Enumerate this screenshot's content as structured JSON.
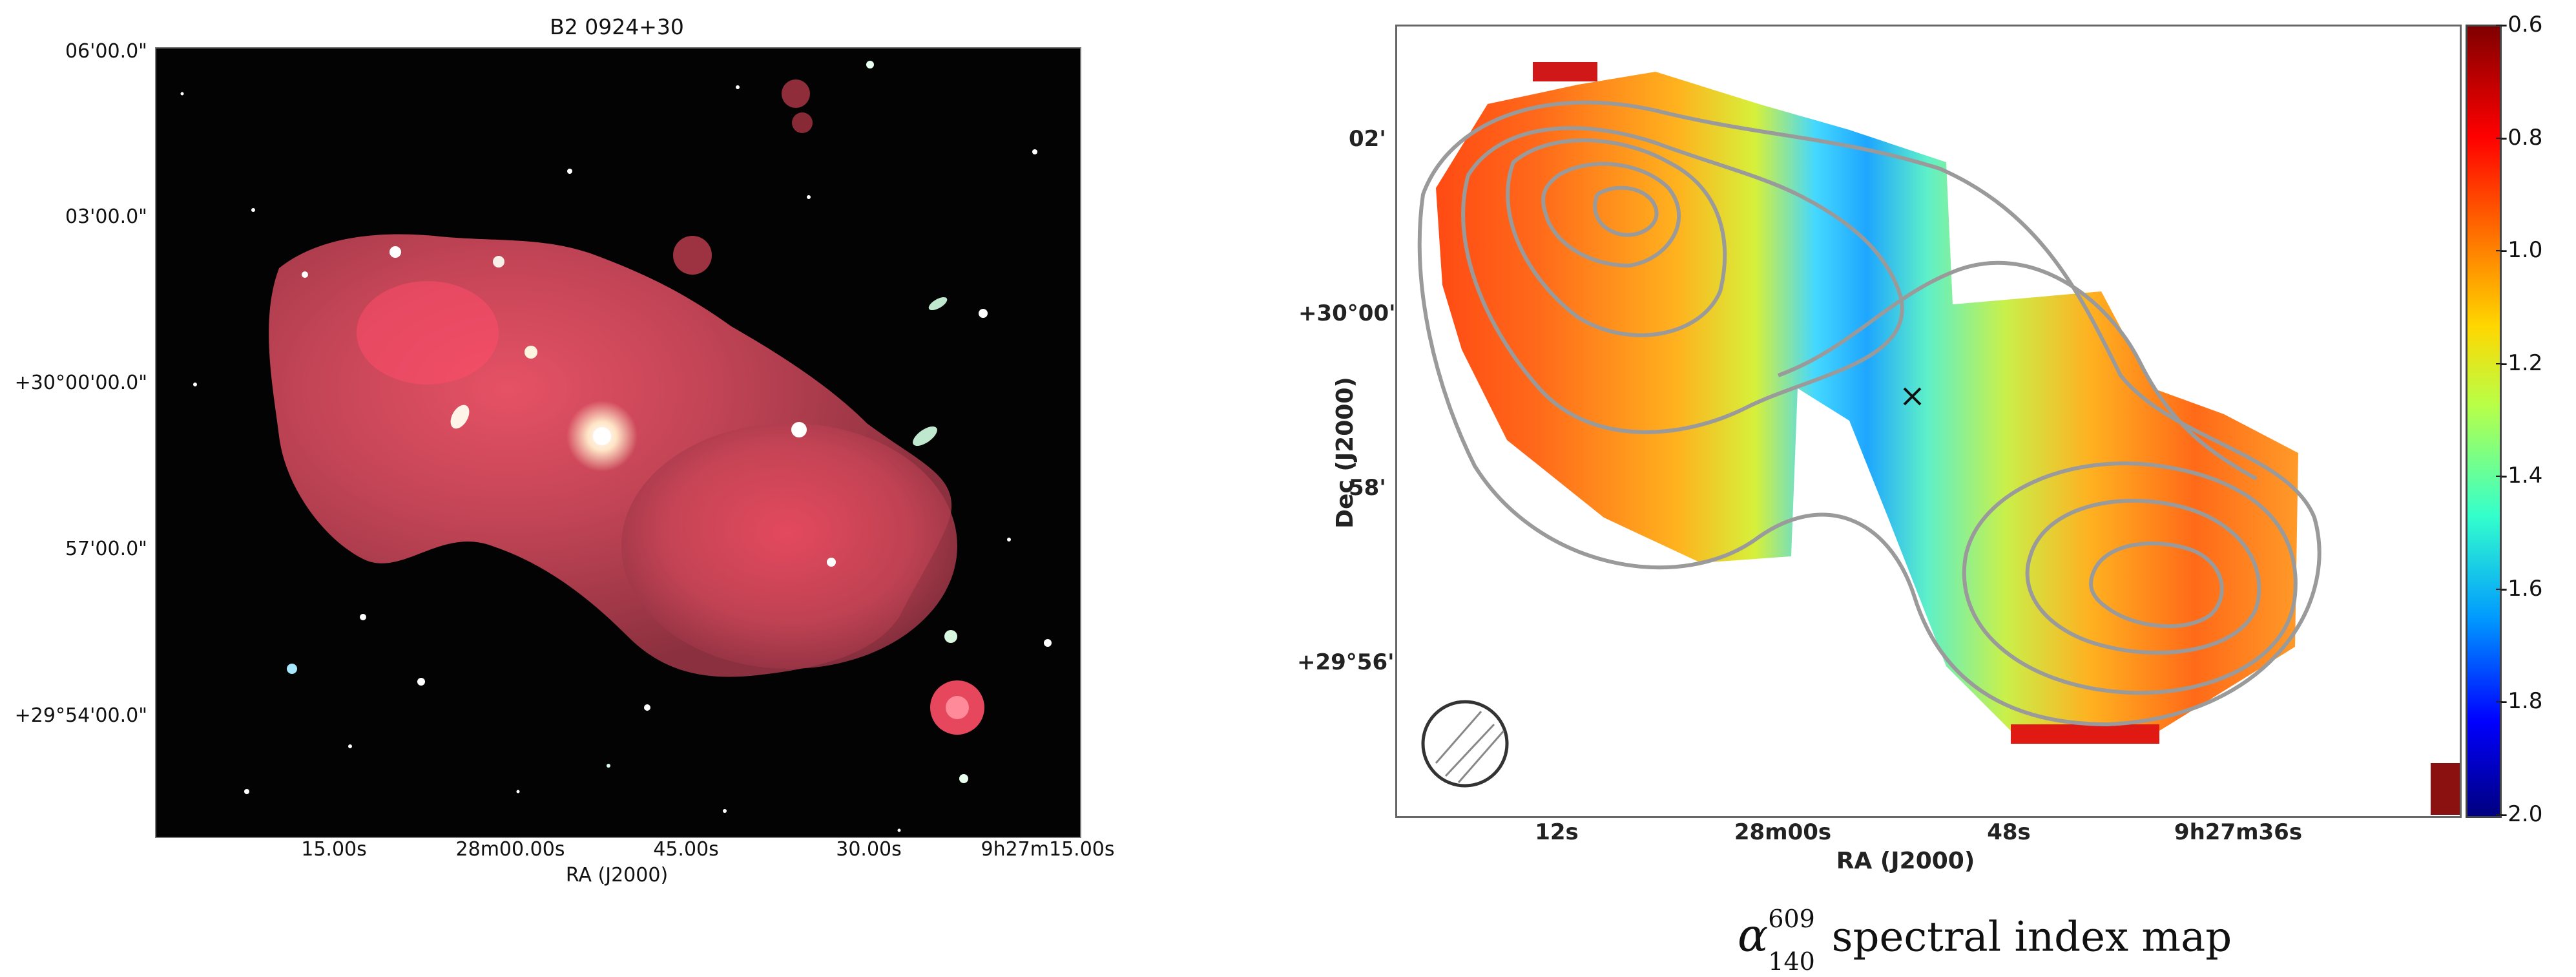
{
  "optical_panel": {
    "title": "B2 0924+30",
    "y_ticks": [
      "06'00.0\"",
      "03'00.0\"",
      "+30°00'00.0\"",
      "57'00.0\"",
      "+29°54'00.0\""
    ],
    "x_ticks": [
      "15.00s",
      "28m00.00s",
      "45.00s",
      "30.00s",
      "9h27m15.00s"
    ],
    "x_label": "RA (J2000)",
    "emission_color": "#cc4a5a",
    "background_color": "#030304"
  },
  "spectral_panel": {
    "y_label": "Dec (J2000)",
    "y_ticks": [
      "02'",
      "+30°00'",
      "58'",
      "+29°56'"
    ],
    "x_ticks": [
      "12s",
      "28m00s",
      "48s",
      "9h27m36s"
    ],
    "x_label": "RA (J2000)",
    "colorbar_ticks": [
      "-0.6",
      "-0.8",
      "-1.0",
      "-1.2",
      "-1.4",
      "-1.6",
      "-1.8",
      "-2.0"
    ],
    "colorbar_range": [
      -2.0,
      -0.6
    ],
    "contour_color": "#9a9a9a",
    "caption_symbol": "α",
    "caption_sup": "609",
    "caption_sub": "140",
    "caption_text": "spectral index map"
  }
}
